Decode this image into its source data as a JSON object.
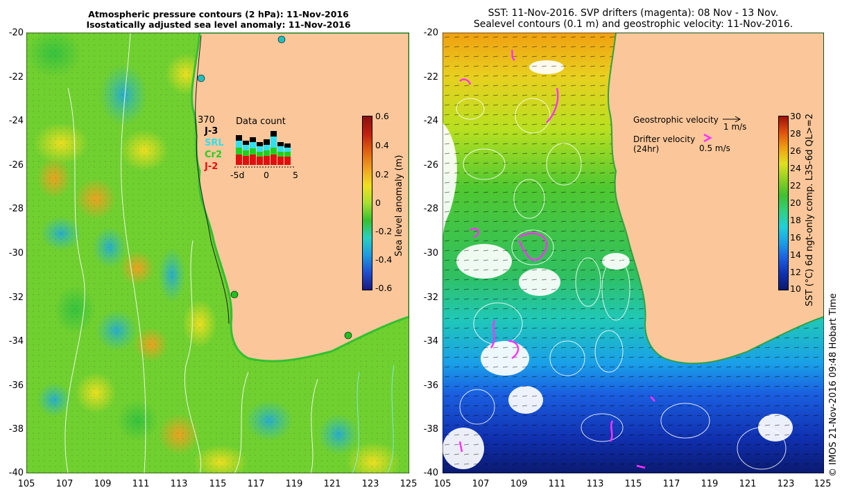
{
  "left_panel": {
    "title_line1": "Atmospheric pressure contours (2 hPa): 11-Nov-2016",
    "title_line2": "Isostatically adjusted sea level anomaly: 11-Nov-2016",
    "y_ticks": [
      "-20",
      "-22",
      "-24",
      "-26",
      "-28",
      "-30",
      "-32",
      "-34",
      "-36",
      "-38",
      "-40"
    ],
    "x_ticks": [
      "105",
      "107",
      "109",
      "111",
      "113",
      "115",
      "117",
      "119",
      "121",
      "123",
      "125"
    ],
    "colorbar": {
      "label": "Sea level anomaly (m)",
      "ticks": [
        "0.6",
        "0.4",
        "0.2",
        "0",
        "-0.2",
        "-0.4",
        "-0.6"
      ],
      "colors": [
        "#1a1a80",
        "#1f4fd0",
        "#1f9be0",
        "#2ad0c0",
        "#38c030",
        "#a8e030",
        "#f0e020",
        "#f0a020",
        "#e06010",
        "#c02010",
        "#8a1010"
      ]
    },
    "data_count": {
      "title": "Data count",
      "max_label": "370",
      "missions": [
        {
          "name": "J-3",
          "color": "#000000"
        },
        {
          "name": "SRL",
          "color": "#30e0f0"
        },
        {
          "name": "Cr2",
          "color": "#20d020"
        },
        {
          "name": "J-2",
          "color": "#e01010"
        }
      ],
      "x_labels": [
        "-5d",
        "0",
        "5"
      ]
    }
  },
  "right_panel": {
    "title_line1": "SST: 11-Nov-2016. SVP drifters (magenta): 08 Nov - 13 Nov.",
    "title_line2": "Sealevel contours (0.1 m) and geostrophic velocity: 11-Nov-2016.",
    "y_ticks": [
      "-20",
      "-22",
      "-24",
      "-26",
      "-28",
      "-30",
      "-32",
      "-34",
      "-36",
      "-38",
      "-40"
    ],
    "x_ticks": [
      "105",
      "107",
      "109",
      "111",
      "113",
      "115",
      "117",
      "119",
      "121",
      "123",
      "125"
    ],
    "legend": {
      "geostrophic_label": "Geostrophic velocity",
      "geostrophic_scale": "1 m/s",
      "drifter_label": "Drifter velocity",
      "drifter_sub": "(24hr)",
      "drifter_scale": "0.5 m/s"
    },
    "colorbar": {
      "label": "SST (°C) 6d ngt-only comp. L3S-6d QL>=2",
      "ticks": [
        "30",
        "28",
        "26",
        "24",
        "22",
        "20",
        "18",
        "16",
        "14",
        "12",
        "10"
      ],
      "colors": [
        "#0a1a70",
        "#1030b0",
        "#1a5fe0",
        "#1aa0e8",
        "#20d0d8",
        "#30d080",
        "#40c030",
        "#90d020",
        "#e0e020",
        "#f0a010",
        "#e05010",
        "#a01008"
      ]
    }
  },
  "credit": "© IMOS 21-Nov-2016 09:48 Hobart Time",
  "colors": {
    "land": "#fbc79a",
    "drifter": "#ff30ff"
  }
}
